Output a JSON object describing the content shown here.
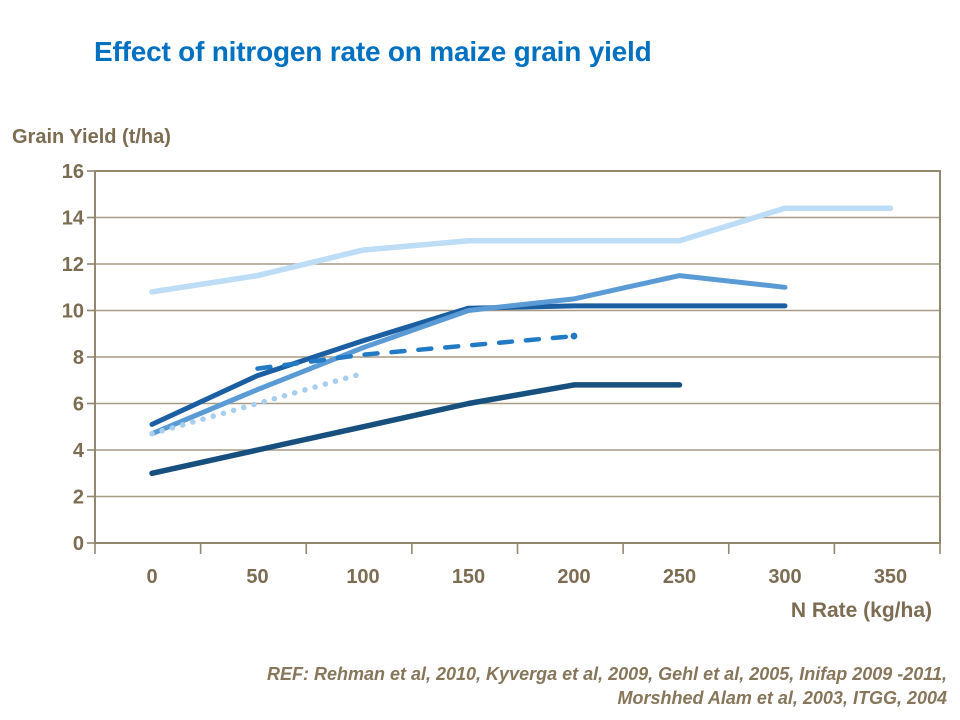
{
  "header": {
    "title": "Effect of nitrogen rate on maize grain yield"
  },
  "axes": {
    "y_label": "Grain Yield (t/ha)",
    "x_label": "N Rate (kg/ha)"
  },
  "footer": {
    "ref_line1": "REF: Rehman et al, 2010, Kyverga et al, 2009, Gehl et al, 2005, Inifap 2009 -2011,",
    "ref_line2": "Morshhed Alam et al, 2003, ITGG, 2004"
  },
  "colors": {
    "title": "#0070C0",
    "axis_text": "#7C6C52",
    "gridline": "#A89B85",
    "frame": "#93876F",
    "background": "#FFFFFF"
  },
  "chart_data": {
    "type": "line",
    "title": "Effect of nitrogen rate on maize grain yield",
    "xlabel": "N Rate (kg/ha)",
    "ylabel": "Grain Yield (t/ha)",
    "x_categories": [
      0,
      50,
      100,
      150,
      200,
      250,
      300,
      350
    ],
    "y_ticks": [
      0,
      2,
      4,
      6,
      8,
      10,
      12,
      14,
      16
    ],
    "ylim": [
      0,
      16
    ],
    "grid": "horizontal",
    "legend": "none",
    "annotation": "REF: Rehman et al, 2010, Kyverga et al, 2009, Gehl et al, 2005, Inifap 2009 -2011, Morshhed Alam et al, 2003, ITGG, 2004",
    "series": [
      {
        "name": "pale-blue-solid",
        "style": "solid",
        "color": "#BDDCF5",
        "width": 5.5,
        "values": [
          10.8,
          11.5,
          12.6,
          13,
          13,
          13,
          14.4,
          14.4
        ]
      },
      {
        "name": "dark-blue-solid",
        "style": "solid",
        "color": "#1B5EA2",
        "width": 5,
        "values": [
          5.1,
          7.2,
          8.7,
          10.1,
          10.2,
          10.2,
          10.2,
          null
        ]
      },
      {
        "name": "medium-blue-solid",
        "style": "solid",
        "color": "#5B9BD5",
        "width": 5,
        "values": [
          4.7,
          6.6,
          8.4,
          10,
          10.5,
          11.5,
          11,
          null
        ]
      },
      {
        "name": "bright-blue-dashed",
        "style": "dashed",
        "color": "#2279C4",
        "width": 4.5,
        "end_dot": true,
        "values": [
          null,
          7.5,
          8.1,
          8.5,
          8.9,
          null,
          null,
          null
        ]
      },
      {
        "name": "pale-blue-dotted",
        "style": "dotted",
        "color": "#A8CEEF",
        "width": 5.5,
        "values": [
          4.7,
          6.0,
          7.3,
          null,
          null,
          null,
          null,
          null
        ]
      },
      {
        "name": "darkest-blue-solid",
        "style": "solid",
        "color": "#17507F",
        "width": 5.5,
        "values": [
          3,
          4,
          5,
          6,
          6.8,
          6.8,
          null,
          null
        ]
      }
    ]
  }
}
